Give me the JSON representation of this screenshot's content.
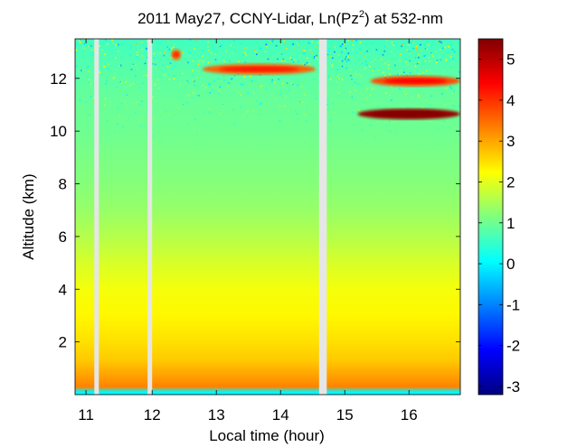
{
  "chart_data": {
    "type": "heatmap",
    "title_main": "2011 May27, CCNY-Lidar, Ln(Pz",
    "title_sup": "2",
    "title_tail": ") at 532-nm",
    "xlabel": "Local time (hour)",
    "ylabel": "Altitude (km)",
    "xlim": [
      10.8,
      16.8
    ],
    "ylim": [
      0.0,
      13.5
    ],
    "xticks": [
      {
        "value": 10.97,
        "label": "11"
      },
      {
        "value": 12.0,
        "label": "12"
      },
      {
        "value": 13.0,
        "label": "13"
      },
      {
        "value": 14.0,
        "label": "14"
      },
      {
        "value": 15.0,
        "label": "15"
      },
      {
        "value": 16.0,
        "label": "16"
      }
    ],
    "yticks": [
      {
        "value": 2,
        "label": "2"
      },
      {
        "value": 4,
        "label": "4"
      },
      {
        "value": 6,
        "label": "6"
      },
      {
        "value": 8,
        "label": "8"
      },
      {
        "value": 10,
        "label": "10"
      },
      {
        "value": 12,
        "label": "12"
      }
    ],
    "colorbar": {
      "min": -3.2,
      "max": 5.5,
      "ticks": [
        {
          "value": -3,
          "label": "-3"
        },
        {
          "value": -2,
          "label": "-2"
        },
        {
          "value": -1,
          "label": "-1"
        },
        {
          "value": 0,
          "label": "0"
        },
        {
          "value": 1,
          "label": "1"
        },
        {
          "value": 2,
          "label": "2"
        },
        {
          "value": 3,
          "label": "3"
        },
        {
          "value": 4,
          "label": "4"
        },
        {
          "value": 5,
          "label": "5"
        }
      ],
      "colormap": "jet"
    },
    "data_gaps_hours": [
      [
        11.1,
        11.17
      ],
      [
        11.93,
        12.0
      ],
      [
        14.6,
        14.72
      ]
    ],
    "profile": [
      {
        "altitude_km": 0.1,
        "value": 0.0
      },
      {
        "altitude_km": 0.3,
        "value": 3.3
      },
      {
        "altitude_km": 0.8,
        "value": 3.0
      },
      {
        "altitude_km": 1.3,
        "value": 2.7
      },
      {
        "altitude_km": 2.0,
        "value": 2.5
      },
      {
        "altitude_km": 3.0,
        "value": 2.3
      },
      {
        "altitude_km": 4.0,
        "value": 2.15
      },
      {
        "altitude_km": 5.0,
        "value": 1.9
      },
      {
        "altitude_km": 6.0,
        "value": 1.6
      },
      {
        "altitude_km": 7.0,
        "value": 1.35
      },
      {
        "altitude_km": 8.0,
        "value": 1.2
      },
      {
        "altitude_km": 9.0,
        "value": 1.1
      },
      {
        "altitude_km": 10.0,
        "value": 1.0
      },
      {
        "altitude_km": 11.0,
        "value": 0.95
      },
      {
        "altitude_km": 12.0,
        "value": 0.85
      },
      {
        "altitude_km": 13.5,
        "value": 0.6
      }
    ],
    "features": [
      {
        "name": "cirrus-layer-early",
        "t_start": 12.3,
        "t_end": 12.45,
        "alt_km": 12.9,
        "value": 3.5
      },
      {
        "name": "cirrus-layer-1",
        "t_start": 12.78,
        "t_end": 14.55,
        "alt_km": 12.35,
        "value": 3.6
      },
      {
        "name": "cirrus-layer-2",
        "t_start": 15.4,
        "t_end": 16.8,
        "alt_km": 11.9,
        "value": 3.8
      },
      {
        "name": "dense-cloud-base",
        "t_start": 15.2,
        "t_end": 16.8,
        "alt_km": 10.65,
        "value": 5.3
      }
    ]
  }
}
